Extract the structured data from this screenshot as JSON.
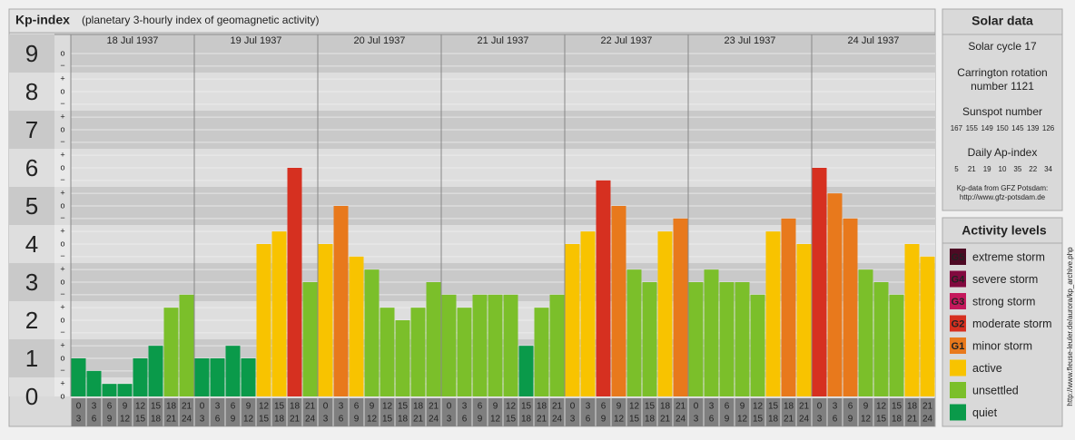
{
  "chart_data": {
    "type": "bar",
    "title": "Kp-index",
    "subtitle": "(planetary 3-hourly index of geomagnetic activity)",
    "days": [
      "18 Jul 1937",
      "19 Jul 1937",
      "20 Jul 1937",
      "21 Jul 1937",
      "22 Jul 1937",
      "23 Jul 1937",
      "24 Jul 1937"
    ],
    "hours": [
      [
        "0",
        "3"
      ],
      [
        "3",
        "6"
      ],
      [
        "6",
        "9"
      ],
      [
        "9",
        "12"
      ],
      [
        "12",
        "15"
      ],
      [
        "15",
        "18"
      ],
      [
        "18",
        "21"
      ],
      [
        "21",
        "24"
      ]
    ],
    "values": [
      1,
      0.67,
      0.33,
      0.33,
      1,
      1.33,
      2.33,
      2.67,
      1,
      1,
      1.33,
      1,
      4,
      4.33,
      6,
      3,
      4,
      5,
      3.67,
      3.33,
      2.33,
      2,
      2.33,
      3,
      2.67,
      2.33,
      2.67,
      2.67,
      2.67,
      1.33,
      2.33,
      2.67,
      4,
      4.33,
      5.67,
      5,
      3.33,
      3,
      4.33,
      4.67,
      3,
      3.33,
      3,
      3,
      2.67,
      4.33,
      4.67,
      4,
      6,
      5.33,
      4.67,
      3.33,
      3,
      2.67,
      4,
      3.67
    ],
    "colors": [
      "#0a9a4a",
      "#0a9a4a",
      "#0a9a4a",
      "#0a9a4a",
      "#0a9a4a",
      "#0a9a4a",
      "#7bbf2a",
      "#7bbf2a",
      "#0a9a4a",
      "#0a9a4a",
      "#0a9a4a",
      "#0a9a4a",
      "#f8c300",
      "#f8c300",
      "#d63020",
      "#7bbf2a",
      "#f8c300",
      "#e8791c",
      "#f8c300",
      "#7bbf2a",
      "#7bbf2a",
      "#7bbf2a",
      "#7bbf2a",
      "#7bbf2a",
      "#7bbf2a",
      "#7bbf2a",
      "#7bbf2a",
      "#7bbf2a",
      "#7bbf2a",
      "#0a9a4a",
      "#7bbf2a",
      "#7bbf2a",
      "#f8c300",
      "#f8c300",
      "#d63020",
      "#e8791c",
      "#7bbf2a",
      "#7bbf2a",
      "#f8c300",
      "#e8791c",
      "#7bbf2a",
      "#7bbf2a",
      "#7bbf2a",
      "#7bbf2a",
      "#7bbf2a",
      "#f8c300",
      "#e8791c",
      "#f8c300",
      "#d63020",
      "#e8791c",
      "#e8791c",
      "#7bbf2a",
      "#7bbf2a",
      "#7bbf2a",
      "#f8c300",
      "#f8c300"
    ],
    "ylim": [
      0,
      9.5
    ],
    "yticks": [
      0,
      1,
      2,
      3,
      4,
      5,
      6,
      7,
      8,
      9
    ],
    "minor_yticks": [
      {
        "value": 0,
        "label": "o"
      },
      {
        "value": 0.33,
        "label": "+"
      },
      {
        "value": 0.67,
        "label": "−"
      },
      {
        "value": 1,
        "label": "o"
      },
      {
        "value": 1.33,
        "label": "+"
      },
      {
        "value": 1.67,
        "label": "−"
      },
      {
        "value": 2,
        "label": "o"
      },
      {
        "value": 2.33,
        "label": "+"
      },
      {
        "value": 2.67,
        "label": "−"
      },
      {
        "value": 3,
        "label": "o"
      },
      {
        "value": 3.33,
        "label": "+"
      },
      {
        "value": 3.67,
        "label": "−"
      },
      {
        "value": 4,
        "label": "o"
      },
      {
        "value": 4.33,
        "label": "+"
      },
      {
        "value": 4.67,
        "label": "−"
      },
      {
        "value": 5,
        "label": "o"
      },
      {
        "value": 5.33,
        "label": "+"
      },
      {
        "value": 5.67,
        "label": "−"
      },
      {
        "value": 6,
        "label": "o"
      },
      {
        "value": 6.33,
        "label": "+"
      },
      {
        "value": 6.67,
        "label": "−"
      },
      {
        "value": 7,
        "label": "o"
      },
      {
        "value": 7.33,
        "label": "+"
      },
      {
        "value": 7.67,
        "label": "−"
      },
      {
        "value": 8,
        "label": "o"
      },
      {
        "value": 8.33,
        "label": "+"
      },
      {
        "value": 8.67,
        "label": "−"
      },
      {
        "value": 9,
        "label": "o"
      }
    ],
    "grid": true,
    "solar_data": {
      "title": "Solar data",
      "cycle": "Solar cycle 17",
      "carrington": [
        "Carrington rotation",
        "number 1121"
      ],
      "sunspot_title": "Sunspot number",
      "sunspot": [
        167,
        155,
        149,
        150,
        145,
        139,
        126
      ],
      "ap_title": "Daily Ap-index",
      "ap": [
        5,
        21,
        19,
        10,
        35,
        22,
        34
      ],
      "source": [
        "Kp-data from GFZ Potsdam:",
        "http://www.gfz-potsdam.de"
      ]
    },
    "activity_levels": {
      "title": "Activity levels",
      "items": [
        {
          "badge": "G5",
          "name": "extreme storm",
          "color": "#4d0a24"
        },
        {
          "badge": "G4",
          "name": "severe storm",
          "color": "#82093f"
        },
        {
          "badge": "G3",
          "name": "strong storm",
          "color": "#c4185c"
        },
        {
          "badge": "G2",
          "name": "moderate storm",
          "color": "#d63020"
        },
        {
          "badge": "G1",
          "name": "minor storm",
          "color": "#e8791c"
        },
        {
          "name": "active",
          "color": "#f8c300"
        },
        {
          "name": "unsettled",
          "color": "#7bbf2a"
        },
        {
          "name": "quiet",
          "color": "#0a9a4a"
        }
      ]
    },
    "credit": "http://www.fleuse-leuler.de/aurora/kp_archive.php"
  }
}
